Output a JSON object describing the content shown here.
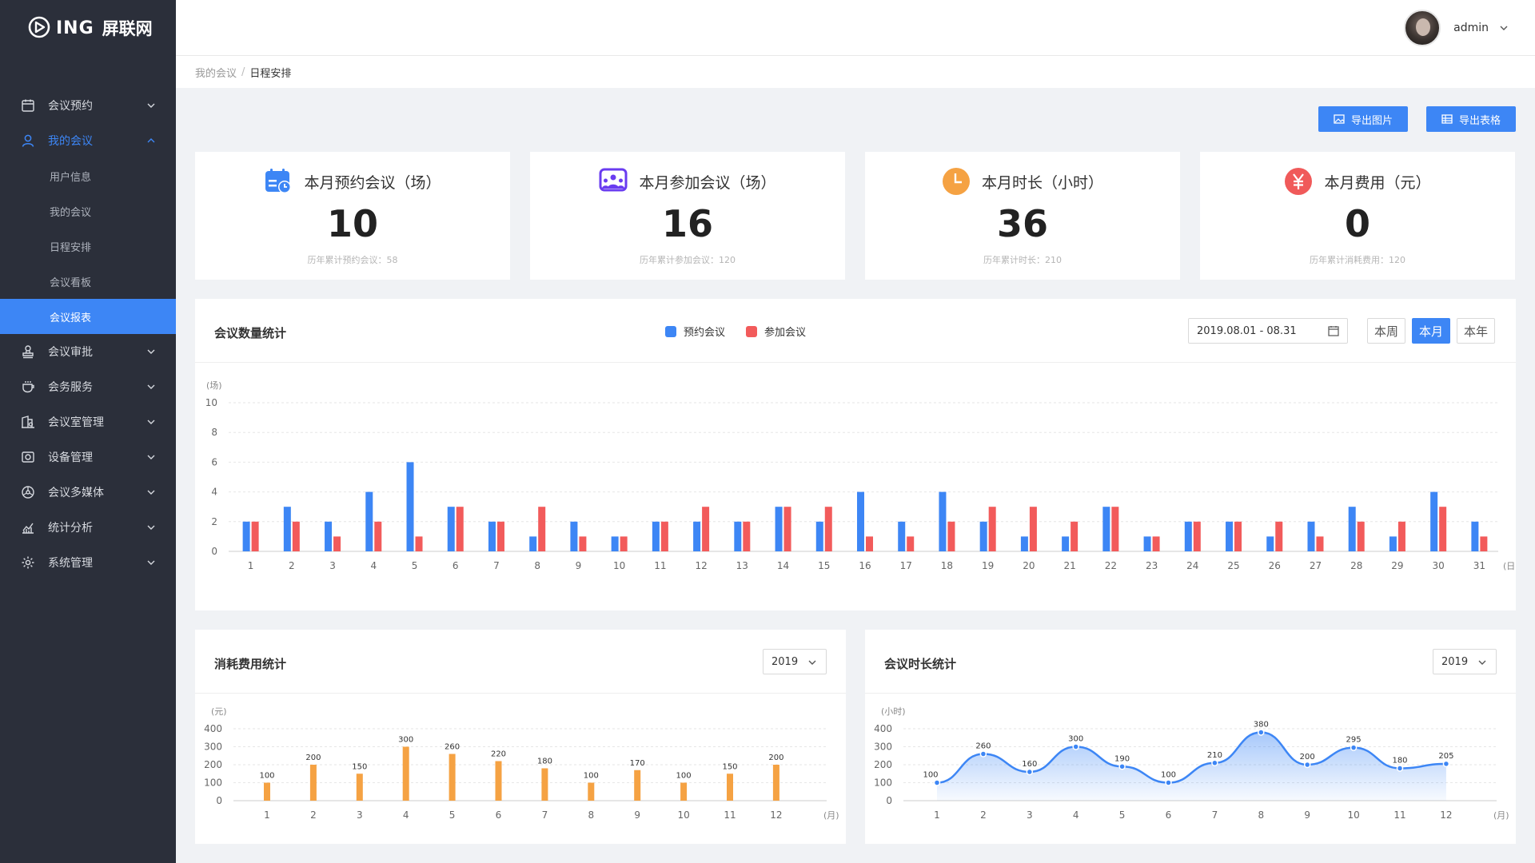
{
  "brand": {
    "mark": "ING",
    "name": "屏联网"
  },
  "sidebar": {
    "items": [
      {
        "label": "会议预约",
        "icon": "calendar-icon",
        "expanded": false
      },
      {
        "label": "我的会议",
        "icon": "user-icon",
        "expanded": true,
        "children": [
          {
            "label": "用户信息",
            "active": false
          },
          {
            "label": "我的会议",
            "active": false
          },
          {
            "label": "日程安排",
            "active": false
          },
          {
            "label": "会议看板",
            "active": false
          },
          {
            "label": "会议报表",
            "active": true
          }
        ]
      },
      {
        "label": "会议审批",
        "icon": "stamp-icon",
        "expanded": false
      },
      {
        "label": "会务服务",
        "icon": "cup-icon",
        "expanded": false
      },
      {
        "label": "会议室管理",
        "icon": "room-icon",
        "expanded": false
      },
      {
        "label": "设备管理",
        "icon": "device-icon",
        "expanded": false
      },
      {
        "label": "会议多媒体",
        "icon": "media-icon",
        "expanded": false
      },
      {
        "label": "统计分析",
        "icon": "chart-icon",
        "expanded": false
      },
      {
        "label": "系统管理",
        "icon": "settings-icon",
        "expanded": false
      }
    ]
  },
  "header": {
    "user_name": "admin"
  },
  "breadcrumb": {
    "parent": "我的会议",
    "sep": "/",
    "current": "日程安排"
  },
  "toolbar": {
    "export_image": "导出图片",
    "export_table": "导出表格"
  },
  "stats": [
    {
      "label": "本月预约会议（场）",
      "value": "10",
      "sub": "历年累计预约会议：58",
      "icon": "calendar-clock-icon",
      "color": "#3d86f5"
    },
    {
      "label": "本月参加会议（场）",
      "value": "16",
      "sub": "历年累计参加会议：120",
      "icon": "meeting-icon",
      "color": "#6a3cf0"
    },
    {
      "label": "本月时长（小时）",
      "value": "36",
      "sub": "历年累计时长：210",
      "icon": "clock-icon",
      "color": "#f5a243"
    },
    {
      "label": "本月费用（元）",
      "value": "0",
      "sub": "历年累计消耗费用：120",
      "icon": "yen-icon",
      "color": "#f05a5a"
    }
  ],
  "meeting_panel": {
    "title": "会议数量统计",
    "legend": [
      {
        "name": "预约会议",
        "color": "#3d86f5"
      },
      {
        "name": "参加会议",
        "color": "#f25b5b"
      }
    ],
    "date_range": "2019.08.01 - 08.31",
    "periods": [
      {
        "label": "本周",
        "active": false
      },
      {
        "label": "本月",
        "active": true
      },
      {
        "label": "本年",
        "active": false
      }
    ]
  },
  "cost_panel": {
    "title": "消耗费用统计",
    "year": "2019"
  },
  "duration_panel": {
    "title": "会议时长统计",
    "year": "2019"
  },
  "chart_data": [
    {
      "type": "bar",
      "unit": "(场)",
      "x_unit": "(日)",
      "categories": [
        "1",
        "2",
        "3",
        "4",
        "5",
        "6",
        "7",
        "8",
        "9",
        "10",
        "11",
        "12",
        "13",
        "14",
        "15",
        "16",
        "17",
        "18",
        "19",
        "20",
        "21",
        "22",
        "23",
        "24",
        "25",
        "26",
        "27",
        "28",
        "29",
        "30",
        "31"
      ],
      "series": [
        {
          "name": "预约会议",
          "color": "#3d86f5",
          "values": [
            2,
            3,
            2,
            4,
            6,
            3,
            2,
            1,
            2,
            1,
            2,
            2,
            2,
            3,
            2,
            4,
            2,
            4,
            2,
            1,
            1,
            3,
            1,
            2,
            2,
            1,
            2,
            3,
            1,
            4,
            2
          ]
        },
        {
          "name": "参加会议",
          "color": "#f25b5b",
          "values": [
            2,
            2,
            1,
            2,
            1,
            3,
            2,
            3,
            1,
            1,
            2,
            3,
            2,
            3,
            3,
            1,
            1,
            2,
            3,
            3,
            2,
            3,
            1,
            2,
            2,
            2,
            1,
            2,
            2,
            3,
            1
          ]
        }
      ],
      "ylim": [
        0,
        10
      ],
      "yticks": [
        0,
        2,
        4,
        6,
        8,
        10
      ],
      "grid": true
    },
    {
      "type": "bar",
      "unit": "(元)",
      "x_unit": "(月)",
      "categories": [
        "1",
        "2",
        "3",
        "4",
        "5",
        "6",
        "7",
        "8",
        "9",
        "10",
        "11",
        "12"
      ],
      "series": [
        {
          "color": "#f5a243",
          "values": [
            100,
            200,
            150,
            300,
            260,
            220,
            180,
            100,
            170,
            100,
            150,
            200
          ]
        }
      ],
      "ylim": [
        0,
        400
      ],
      "yticks": [
        0,
        100,
        200,
        300,
        400
      ],
      "grid": true
    },
    {
      "type": "area",
      "unit": "(小时)",
      "x_unit": "(月)",
      "categories": [
        "1",
        "2",
        "3",
        "4",
        "5",
        "6",
        "7",
        "8",
        "9",
        "10",
        "11",
        "12"
      ],
      "series": [
        {
          "color": "#3d86f5",
          "values": [
            100,
            260,
            160,
            300,
            190,
            100,
            210,
            380,
            200,
            295,
            180,
            205
          ]
        }
      ],
      "ylim": [
        0,
        400
      ],
      "yticks": [
        0,
        100,
        200,
        300,
        400
      ],
      "grid": true
    }
  ]
}
